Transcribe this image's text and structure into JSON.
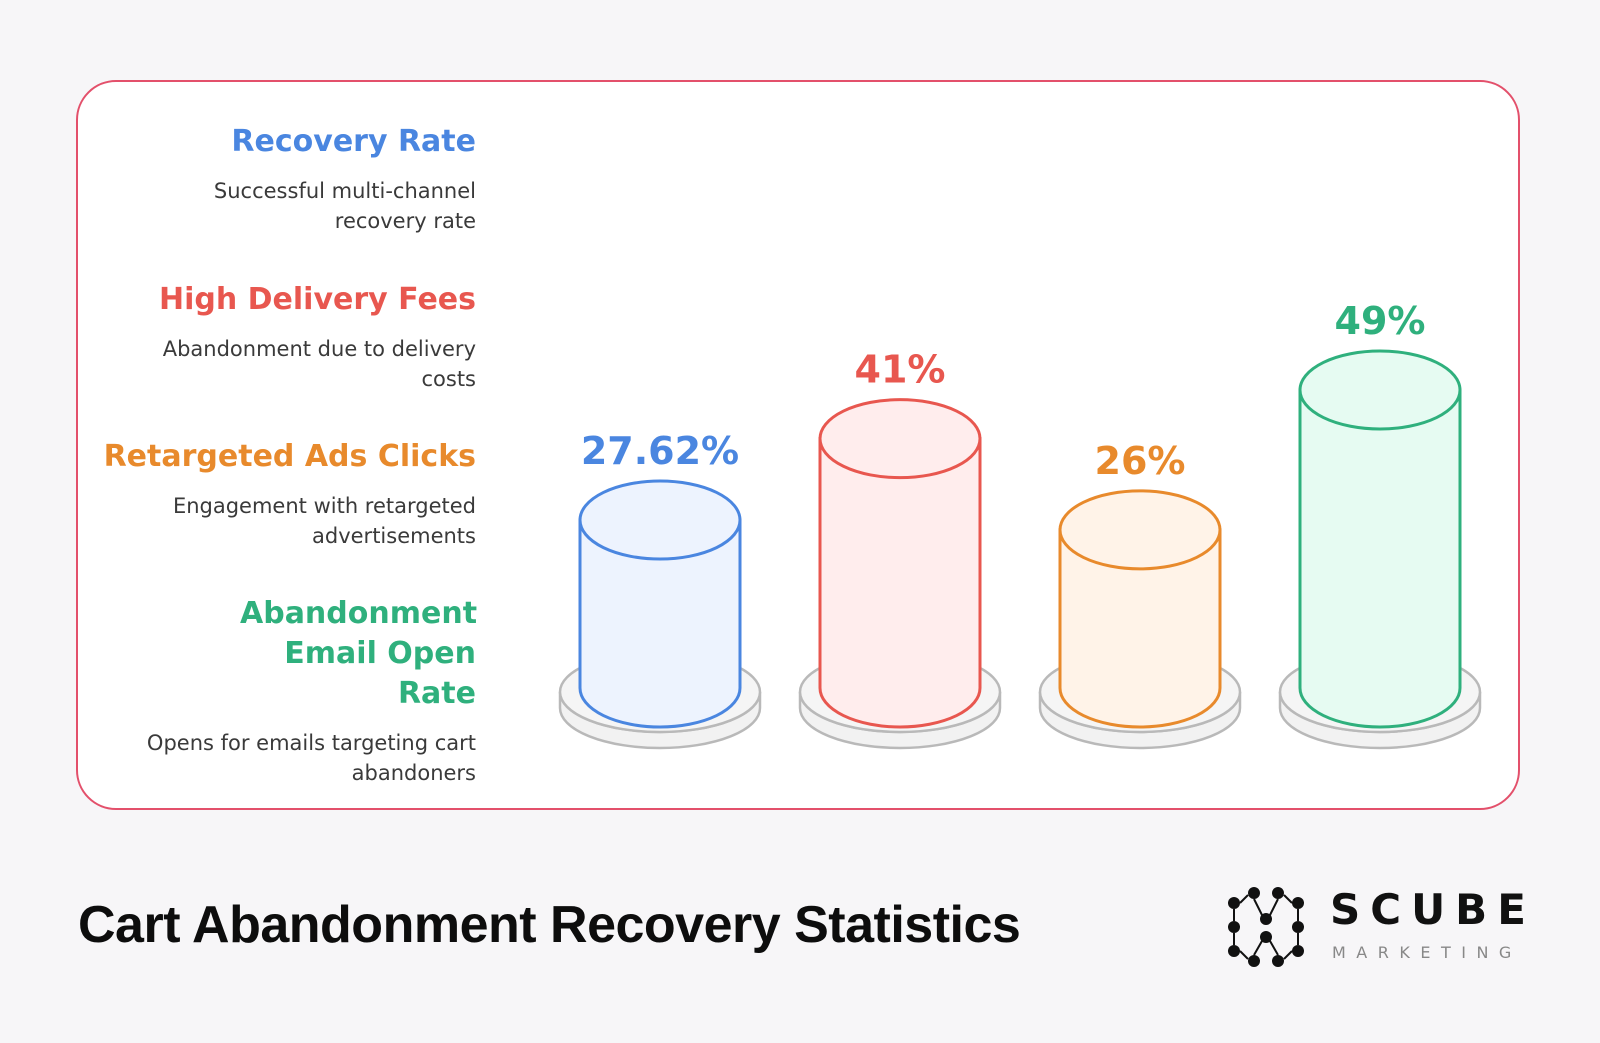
{
  "chart_data": {
    "type": "bar",
    "title": "Cart Abandonment Recovery Statistics",
    "categories": [
      "Recovery Rate",
      "High Delivery Fees",
      "Retargeted Ads Clicks",
      "Abandonment Email Open Rate"
    ],
    "values": [
      27.62,
      41,
      26,
      49
    ],
    "value_labels": [
      "27.62%",
      "41%",
      "26%",
      "49%"
    ],
    "descriptions": [
      "Successful multi-channel recovery rate",
      "Abandonment due to delivery costs",
      "Engagement with retargeted advertisements",
      "Opens for emails targeting cart abandoners"
    ],
    "colors": [
      "#4a86e0",
      "#e8574f",
      "#e88a2c",
      "#2fb07d"
    ],
    "fills": [
      "#edf3fe",
      "#ffeded",
      "#fff3e8",
      "#e6fbf2"
    ],
    "legend": "left"
  },
  "footer": {
    "title": "Cart Abandonment Recovery Statistics"
  },
  "brand": {
    "name": "SCUBE",
    "sub": "MARKETING"
  }
}
